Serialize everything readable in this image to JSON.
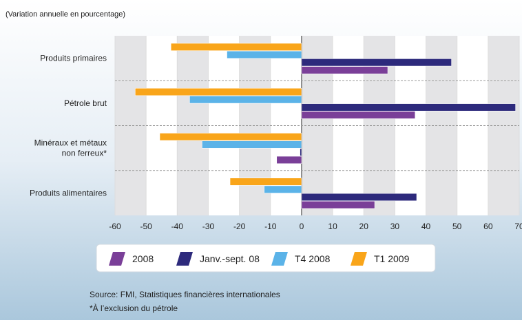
{
  "chart_data": {
    "type": "hbar",
    "subtitle": "(Variation annuelle en pourcentage)",
    "categories": [
      "Produits primaires",
      "Pétrole brut",
      "Minéraux et métaux non ferreux*",
      "Produits alimentaires"
    ],
    "series": [
      {
        "name": "2008",
        "color": "#7a3f98",
        "values": [
          27.7,
          36.5,
          -8,
          23.5
        ]
      },
      {
        "name": "Janv.-sept. 08",
        "color": "#2d2a7c",
        "values": [
          48.2,
          68.8,
          -0.5,
          37
        ]
      },
      {
        "name": "T4 2008",
        "color": "#5bb3e8",
        "values": [
          -24,
          -36,
          -32,
          -12
        ]
      },
      {
        "name": "T1 2009",
        "color": "#f9a51a",
        "values": [
          -42,
          -53.5,
          -45.6,
          -23
        ]
      }
    ],
    "xlim": [
      -60,
      70
    ],
    "xticks": [
      -60,
      -50,
      -40,
      -30,
      -20,
      -10,
      0,
      10,
      20,
      30,
      40,
      50,
      60,
      70
    ],
    "notes": [
      "Source: FMI, Statistiques financières internationales",
      "*À l’exclusion du pétrole"
    ]
  }
}
